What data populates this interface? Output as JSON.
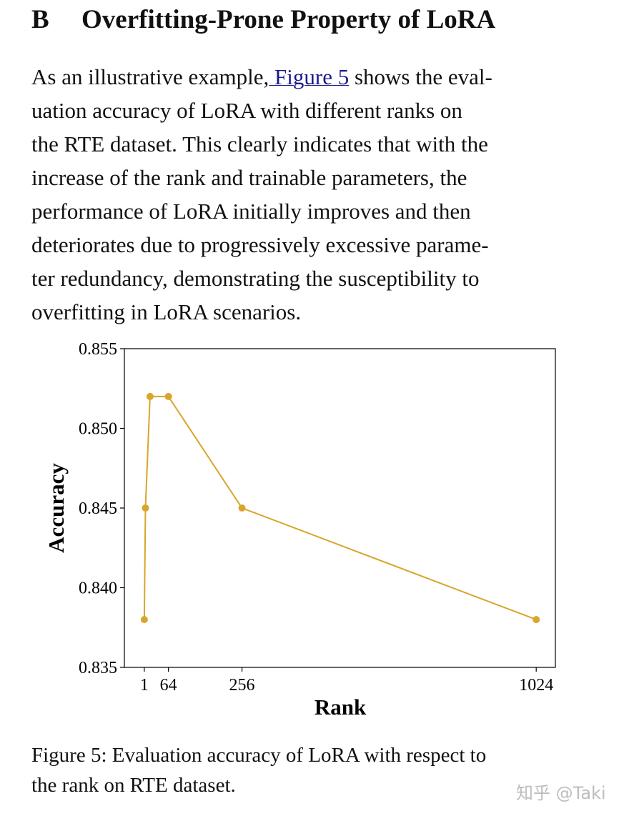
{
  "section": {
    "number": "B",
    "title": "Overfitting-Prone Property of LoRA"
  },
  "paragraph": {
    "line1_pre": "As an illustrative example,",
    "line1_link": " Figure 5",
    "line1_post": " shows the eval-",
    "lines": [
      "uation accuracy of LoRA with different ranks on",
      "the RTE dataset. This clearly indicates that with the",
      "increase of the rank and trainable parameters, the",
      "performance of LoRA initially improves and then",
      "deteriorates due to progressively excessive parame-",
      "ter redundancy, demonstrating the susceptibility to",
      "overfitting in LoRA scenarios."
    ]
  },
  "chart_data": {
    "type": "line",
    "xlabel": "Rank",
    "ylabel": "Accuracy",
    "x": [
      1,
      4,
      16,
      64,
      256,
      1024
    ],
    "y": [
      0.838,
      0.845,
      0.852,
      0.852,
      0.845,
      0.838
    ],
    "xticks": [
      "1",
      "64",
      "256",
      "1024"
    ],
    "xtick_values": [
      1,
      64,
      256,
      1024
    ],
    "yticks": [
      "0.835",
      "0.840",
      "0.845",
      "0.850",
      "0.855"
    ],
    "ytick_values": [
      0.835,
      0.84,
      0.845,
      0.85,
      0.855
    ],
    "xlim": [
      -51,
      1074
    ],
    "ylim": [
      0.835,
      0.855
    ],
    "grid": false,
    "color": "#d9a52a"
  },
  "caption": {
    "line1": "Figure 5: Evaluation accuracy of LoRA with respect to",
    "line2": "the rank on RTE dataset."
  },
  "watermark": "知乎 @Taki"
}
